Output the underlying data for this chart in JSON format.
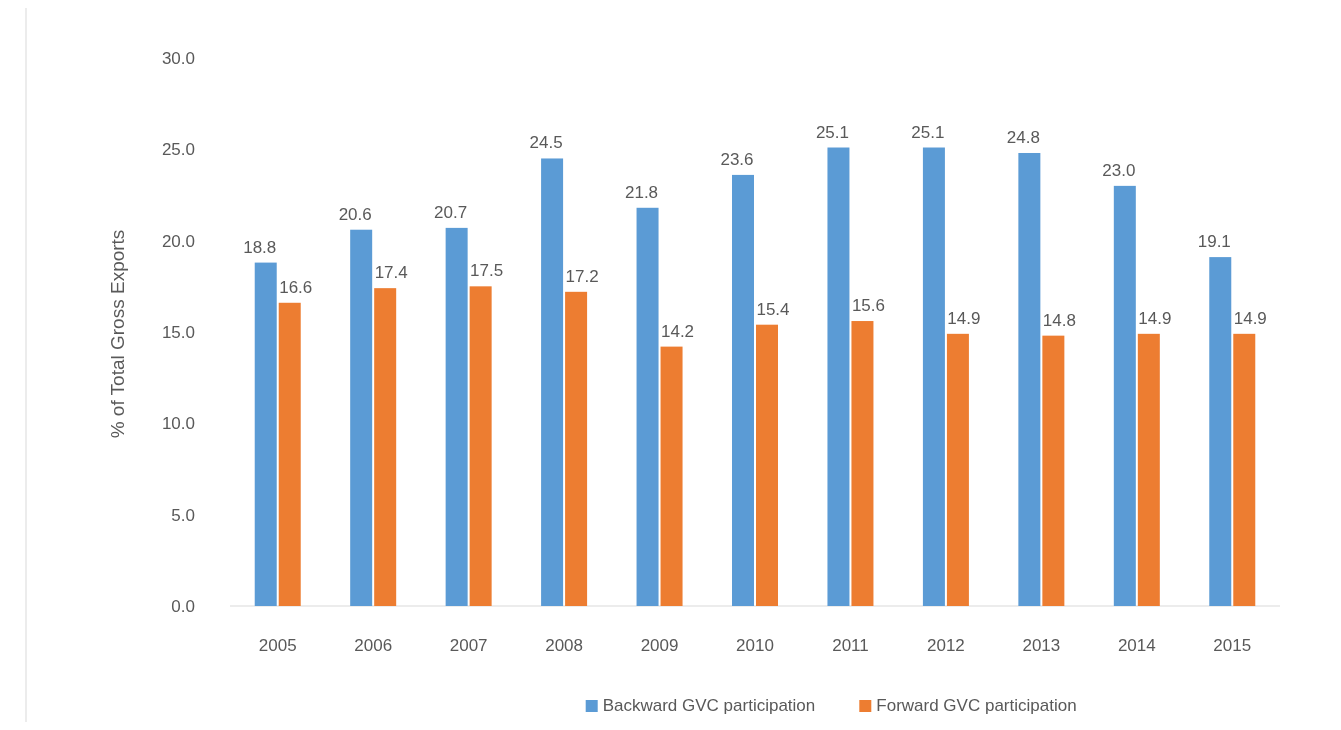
{
  "chart_data": {
    "type": "bar",
    "ylabel": "% of Total Gross Exports",
    "categories": [
      "2005",
      "2006",
      "2007",
      "2008",
      "2009",
      "2010",
      "2011",
      "2012",
      "2013",
      "2014",
      "2015"
    ],
    "series": [
      {
        "name": "Backward GVC participation",
        "color": "#5b9bd5",
        "values": [
          18.8,
          20.6,
          20.7,
          24.5,
          21.8,
          23.6,
          25.1,
          25.1,
          24.8,
          23.0,
          19.1
        ],
        "value_labels": [
          "18.8",
          "20.6",
          "20.7",
          "24.5",
          "21.8",
          "23.6",
          "25.1",
          "25.1",
          "24.8",
          "23.0",
          "19.1"
        ]
      },
      {
        "name": "Forward GVC participation",
        "color": "#ed7d31",
        "values": [
          16.6,
          17.4,
          17.5,
          17.2,
          14.2,
          15.4,
          15.6,
          14.9,
          14.8,
          14.9,
          14.9
        ],
        "value_labels": [
          "16.6",
          "17.4",
          "17.5",
          "17.2",
          "14.2",
          "15.4",
          "15.6",
          "14.9",
          "14.8",
          "14.9",
          "14.9"
        ]
      }
    ],
    "ylim": [
      0,
      30
    ],
    "yticks": [
      {
        "value": 0,
        "label": "0.0"
      },
      {
        "value": 5,
        "label": "5.0"
      },
      {
        "value": 10,
        "label": "10.0"
      },
      {
        "value": 15,
        "label": "15.0"
      },
      {
        "value": 20,
        "label": "20.0"
      },
      {
        "value": 25,
        "label": "25.0"
      },
      {
        "value": 30,
        "label": "30.0"
      }
    ],
    "legend": "bottom"
  }
}
